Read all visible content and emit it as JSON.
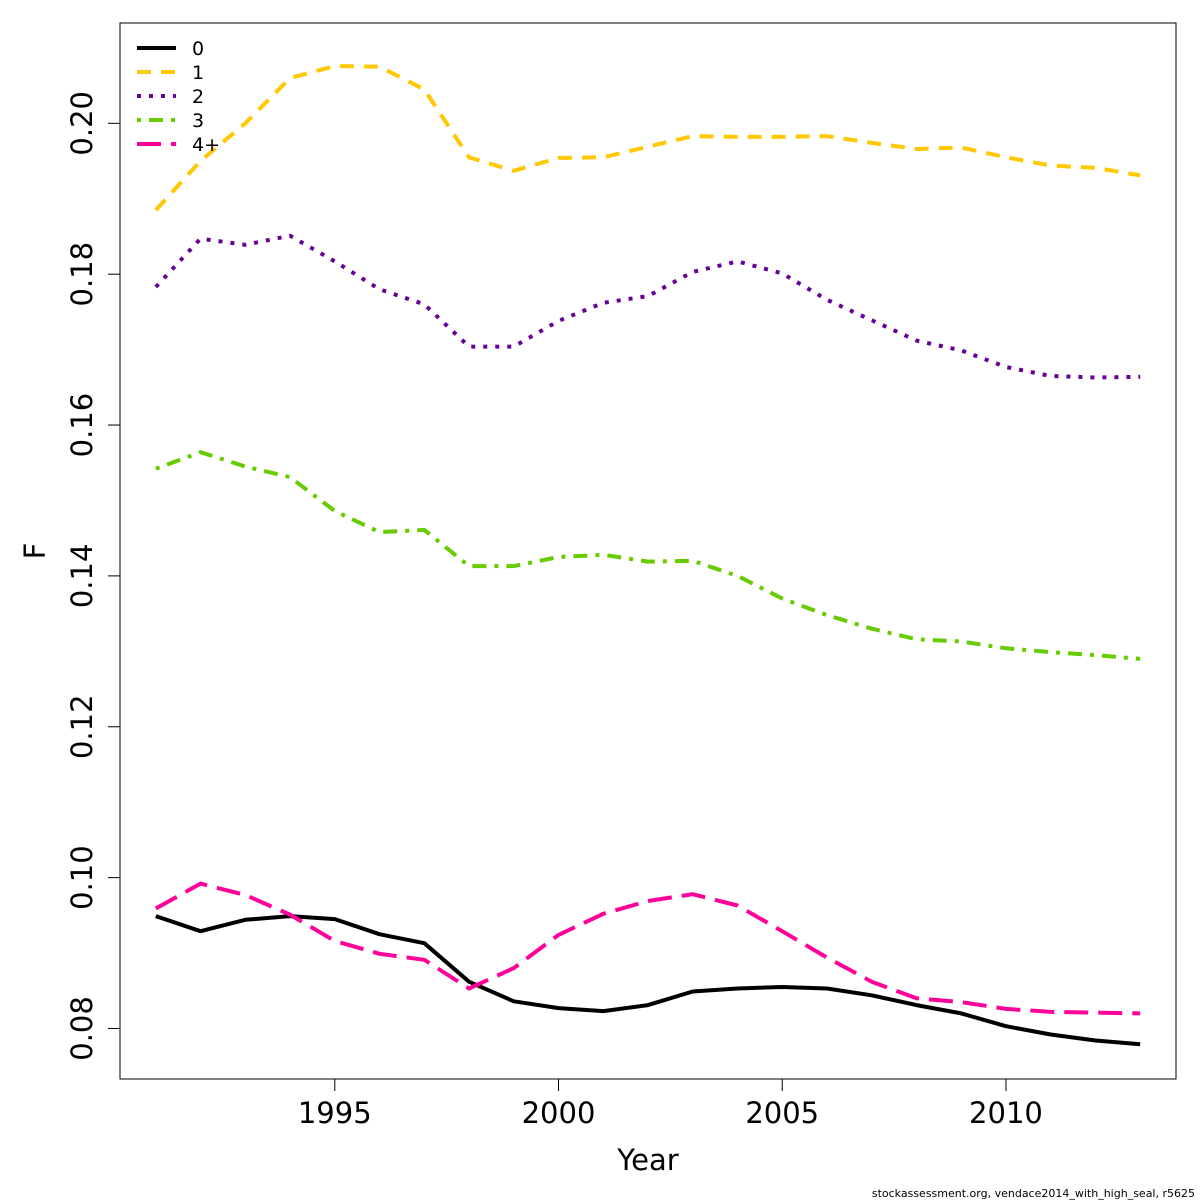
{
  "chart_data": {
    "type": "line",
    "title": "",
    "xlabel": "Year",
    "ylabel": "F",
    "xlim": [
      1990.2,
      2013.8
    ],
    "ylim": [
      0.0733,
      0.2133
    ],
    "x_ticks": [
      1995,
      2000,
      2005,
      2010
    ],
    "y_ticks": [
      0.08,
      0.1,
      0.12,
      0.14,
      0.16,
      0.18,
      0.2
    ],
    "y_tick_labels": [
      "0.08",
      "0.10",
      "0.12",
      "0.14",
      "0.16",
      "0.18",
      "0.20"
    ],
    "grid": false,
    "legend_position": "top-left",
    "x": [
      1991,
      1992,
      1993,
      1994,
      1995,
      1996,
      1997,
      1998,
      1999,
      2000,
      2001,
      2002,
      2003,
      2004,
      2005,
      2006,
      2007,
      2008,
      2009,
      2010,
      2011,
      2012,
      2013
    ],
    "series": [
      {
        "name": "0",
        "color": "#000000",
        "dash": "solid",
        "values": [
          0.0949,
          0.0929,
          0.0944,
          0.0949,
          0.0945,
          0.0925,
          0.0913,
          0.0862,
          0.0836,
          0.0827,
          0.0823,
          0.0831,
          0.0849,
          0.0853,
          0.0855,
          0.0853,
          0.0844,
          0.0831,
          0.082,
          0.0803,
          0.0792,
          0.0784,
          0.0779
        ]
      },
      {
        "name": "1",
        "color": "#FFC800",
        "dash": "dashed",
        "values": [
          0.1885,
          0.195,
          0.2,
          0.206,
          0.2076,
          0.2075,
          0.2045,
          0.1955,
          0.1937,
          0.1954,
          0.1955,
          0.1969,
          0.1983,
          0.1982,
          0.1982,
          0.1983,
          0.1974,
          0.1966,
          0.1968,
          0.1955,
          0.1944,
          0.1941,
          0.1931
        ]
      },
      {
        "name": "2",
        "color": "#660099",
        "dash": "dotted",
        "values": [
          0.1783,
          0.1847,
          0.1839,
          0.1851,
          0.1817,
          0.178,
          0.176,
          0.1704,
          0.1704,
          0.1738,
          0.1762,
          0.1771,
          0.1803,
          0.1817,
          0.1801,
          0.1766,
          0.1739,
          0.1712,
          0.1699,
          0.1677,
          0.1665,
          0.1663,
          0.1664
        ]
      },
      {
        "name": "3",
        "color": "#66CC00",
        "dash": "dotdash",
        "values": [
          0.1542,
          0.1564,
          0.1545,
          0.1531,
          0.1486,
          0.1458,
          0.1461,
          0.1413,
          0.1413,
          0.1425,
          0.1428,
          0.1419,
          0.142,
          0.14,
          0.137,
          0.1348,
          0.133,
          0.1316,
          0.1313,
          0.1304,
          0.1299,
          0.1295,
          0.129
        ]
      },
      {
        "name": "4+",
        "color": "#FF0099",
        "dash": "longdash",
        "values": [
          0.0959,
          0.0992,
          0.0977,
          0.0951,
          0.0916,
          0.0899,
          0.0891,
          0.0853,
          0.088,
          0.0924,
          0.0952,
          0.0969,
          0.0978,
          0.0963,
          0.0929,
          0.0894,
          0.0862,
          0.084,
          0.0835,
          0.0826,
          0.0822,
          0.0821,
          0.082
        ]
      }
    ]
  },
  "footer": {
    "note": "stockassessment.org, vendace2014_with_high_seal, r5625"
  }
}
